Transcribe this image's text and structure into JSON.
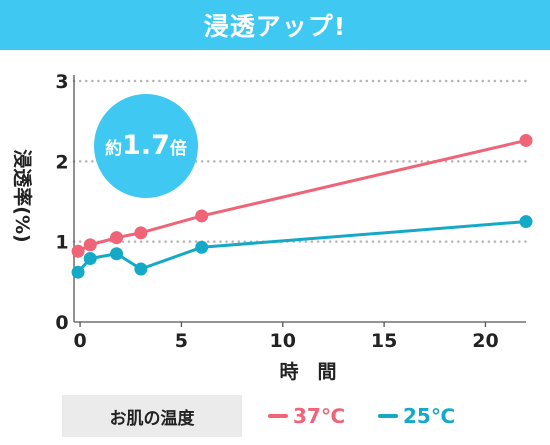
{
  "banner": {
    "title": "浸透アップ!"
  },
  "badge": {
    "prefix": "約",
    "value": "1.7",
    "suffix": "倍",
    "color": "#3ec8f2"
  },
  "legend": {
    "label": "お肌の温度",
    "items": [
      {
        "name": "37℃",
        "color": "#ef6477"
      },
      {
        "name": "25℃",
        "color": "#14a9c6"
      }
    ]
  },
  "chart_data": {
    "type": "line",
    "ylabel": "浸透率(%)",
    "xlabel": "時　間",
    "xlim": [
      -0.3,
      22
    ],
    "ylim": [
      0,
      3
    ],
    "xticks": [
      0,
      5,
      10,
      15,
      20
    ],
    "yticks": [
      0,
      1,
      2,
      3
    ],
    "grid": "horizontal dotted",
    "series": [
      {
        "name": "37℃",
        "color": "#ef6477",
        "x": [
          -0.1,
          0.5,
          1.8,
          3,
          6,
          22
        ],
        "y": [
          0.88,
          0.96,
          1.05,
          1.11,
          1.32,
          2.26
        ]
      },
      {
        "name": "25℃",
        "color": "#14a9c6",
        "x": [
          -0.1,
          0.5,
          1.8,
          3,
          6,
          22
        ],
        "y": [
          0.62,
          0.79,
          0.85,
          0.66,
          0.93,
          1.25
        ]
      }
    ]
  }
}
